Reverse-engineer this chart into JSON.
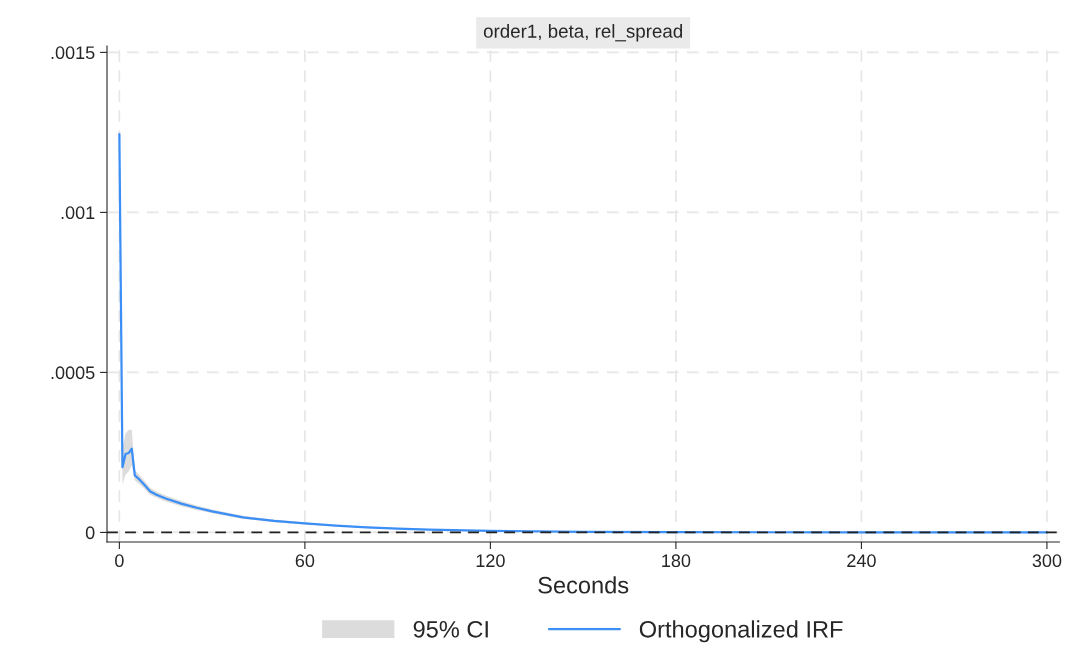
{
  "chart_data": {
    "type": "line",
    "title": "order1, beta, rel_spread",
    "xlabel": "Seconds",
    "annotations": [
      "95% CI"
    ],
    "x": [
      0,
      1,
      2,
      3,
      4,
      5,
      6,
      8,
      10,
      12,
      15,
      20,
      25,
      30,
      40,
      50,
      60,
      70,
      80,
      90,
      100,
      120,
      150,
      180,
      240,
      300
    ],
    "series": [
      {
        "name": "Orthogonalized IRF",
        "color": "#3a8ef6",
        "values": [
          0.001245,
          0.000204,
          0.000245,
          0.000248,
          0.000262,
          0.000178,
          0.00017,
          0.00015,
          0.000128,
          0.000118,
          0.000106,
          9e-05,
          7.7e-05,
          6.6e-05,
          4.7e-05,
          3.6e-05,
          2.8e-05,
          2.1e-05,
          1.6e-05,
          1.2e-05,
          9e-06,
          5e-06,
          2e-06,
          1e-06,
          0,
          0
        ],
        "lower": [
          0.001235,
          0.00015,
          0.00018,
          0.00019,
          0.00021,
          0.000162,
          0.000155,
          0.000137,
          0.000117,
          0.000108,
          9.7e-05,
          8.2e-05,
          7e-05,
          6e-05,
          4.2e-05,
          3.2e-05,
          2.5e-05,
          1.9e-05,
          1.4e-05,
          1e-05,
          8e-06,
          4e-06,
          1e-06,
          0,
          0,
          0
        ],
        "upper": [
          0.001255,
          0.00026,
          0.00031,
          0.00032,
          0.000322,
          0.000194,
          0.000185,
          0.000163,
          0.000139,
          0.000128,
          0.000115,
          9.8e-05,
          8.4e-05,
          7.2e-05,
          5.2e-05,
          4e-05,
          3.1e-05,
          2.3e-05,
          1.8e-05,
          1.4e-05,
          1e-05,
          6e-06,
          3e-06,
          2e-06,
          0,
          0
        ]
      }
    ],
    "xlim": [
      -4,
      304
    ],
    "xticks": [
      0,
      60,
      120,
      180,
      240,
      300
    ],
    "ylim": [
      -3e-05,
      0.00152
    ],
    "yticks": [
      {
        "value": 0,
        "label": "0"
      },
      {
        "value": 0.0005,
        "label": ".0005"
      },
      {
        "value": 0.001,
        "label": ".001"
      },
      {
        "value": 0.0015,
        "label": ".0015"
      }
    ],
    "ref_lines": [
      {
        "axis": "y",
        "value": 0,
        "color": "#222222",
        "line_style": "dashed"
      }
    ],
    "grid": true,
    "legend": "bottom",
    "line_style": "solid",
    "marker": "none"
  }
}
